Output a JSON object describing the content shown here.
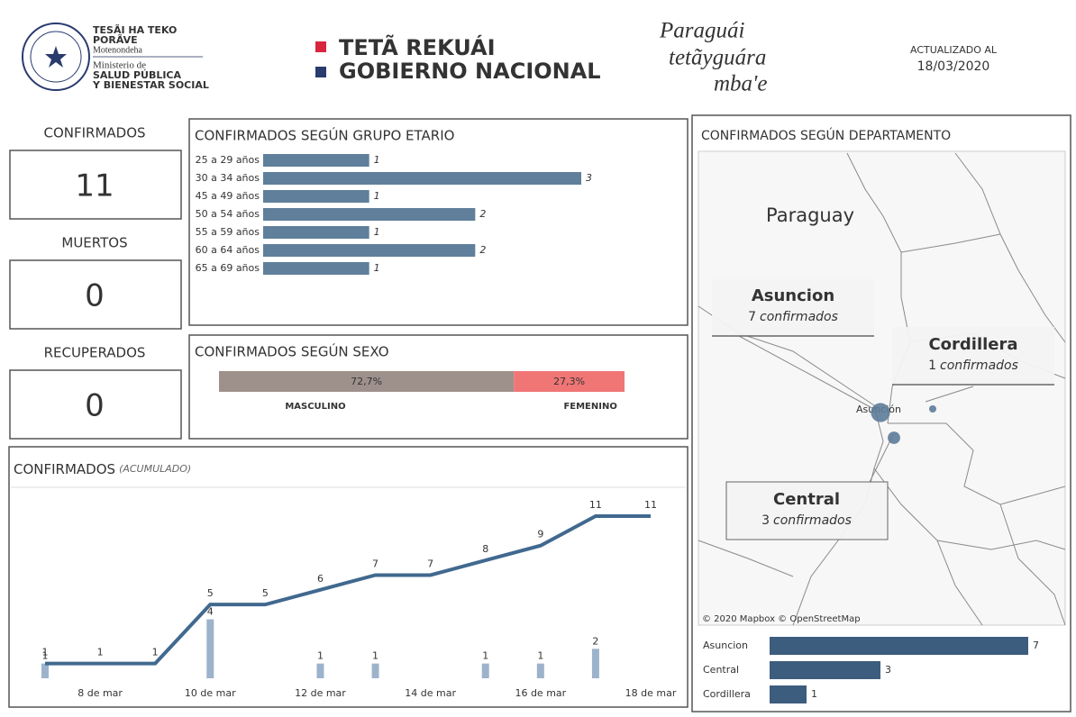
{
  "header": {
    "ministry_line1": "TESÃI HA TEKO",
    "ministry_line2": "PORÃVE",
    "ministry_line3": "Motenondeha",
    "ministry_line4": "Ministerio de",
    "ministry_line5": "SALUD PÚBLICA",
    "ministry_line6": "Y BIENESTAR SOCIAL",
    "gov_line1": "TETÃ REKUÁI",
    "gov_line2": "GOBIERNO NACIONAL",
    "slogan": [
      "Paraguái",
      "tetãyguára",
      "mba'e"
    ],
    "updated_label": "ACTUALIZADO AL",
    "updated_date": "18/03/2020"
  },
  "kpis": [
    {
      "label": "CONFIRMADOS",
      "value": 11,
      "color": "#4a6a8a"
    },
    {
      "label": "MUERTOS",
      "value": 0,
      "color": "#333333"
    },
    {
      "label": "RECUPERADOS",
      "value": 0,
      "color": "#6aaa5e"
    }
  ],
  "chart_data": [
    {
      "type": "hbar",
      "title": "CONFIRMADOS SEGÚN GRUPO ETARIO",
      "categories": [
        "25 a 29 años",
        "30 a 34 años",
        "45 a 49 años",
        "50 a 54 años",
        "55 a 59 años",
        "60 a 64 años",
        "65 a 69 años"
      ],
      "values": [
        1,
        3,
        1,
        2,
        1,
        2,
        1
      ],
      "color": "#5f7f9b"
    },
    {
      "type": "stacked_bar",
      "title": "CONFIRMADOS SEGÚN SEXO",
      "series": [
        {
          "name": "MASCULINO",
          "color": "#9e918c",
          "label_color": "#b39a8c",
          "values": [
            72.7
          ],
          "value_labels": [
            "72,7%"
          ]
        },
        {
          "name": "FEMENINO",
          "color": "#f07575",
          "label_color": "#f07575",
          "values": [
            27.3
          ],
          "value_labels": [
            "27,3%"
          ]
        }
      ]
    },
    {
      "type": "line",
      "title": "CONFIRMADOS",
      "subtitle": "(ACUMULADO)",
      "categories": [
        null,
        "8 de mar",
        null,
        "10 de mar",
        null,
        "12 de mar",
        null,
        "14 de mar",
        null,
        "16 de mar",
        null,
        "18 de mar"
      ],
      "series": [
        {
          "color": "#41698f",
          "values": [
            1,
            1,
            1,
            5,
            5,
            6,
            7,
            7,
            8,
            9,
            11,
            11
          ]
        },
        {
          "color": "#9db3cc",
          "values": [
            1,
            null,
            null,
            4,
            null,
            1,
            1,
            null,
            1,
            1,
            2,
            null
          ]
        }
      ]
    },
    {
      "type": "map",
      "title": "CONFIRMADOS SEGÚN DEPARTAMENTO",
      "country_label": "Paraguay",
      "city_label": "Asunción",
      "attribution": "© 2020 Mapbox © OpenStreetMap",
      "unit": "confirmados",
      "color": "#5d7b99",
      "points": [
        {
          "name": "Asuncion",
          "value": 7
        },
        {
          "name": "Cordillera",
          "value": 1
        },
        {
          "name": "Central",
          "value": 3
        }
      ]
    },
    {
      "type": "hbar_small",
      "categories": [
        "Asuncion",
        "Central",
        "Cordillera"
      ],
      "values": [
        7,
        3,
        1
      ],
      "color": "#3c5d7d"
    }
  ]
}
